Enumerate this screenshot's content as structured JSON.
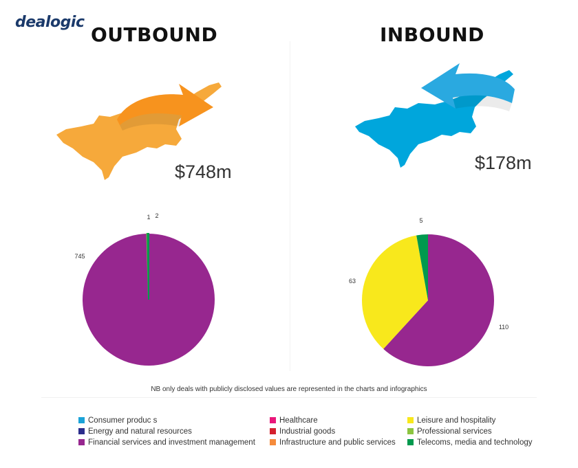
{
  "logo": "dealogic",
  "outbound": {
    "heading": "OUTBOUND",
    "amount": "$748m",
    "map_color": "#f6a93b",
    "arrow_color": "#f7931e"
  },
  "inbound": {
    "heading": "INBOUND",
    "amount": "$178m",
    "map_color": "#00a6dc",
    "arrow_color": "#2aa9e0"
  },
  "chart_data": [
    {
      "type": "pie",
      "slices": [
        {
          "category": "Financial services and investment management",
          "value": 745,
          "label": "745",
          "color": "#97278f"
        },
        {
          "category": "Professional services",
          "value": 1,
          "label": "1",
          "color": "#8cc540"
        },
        {
          "category": "Telecoms, media and technology",
          "value": 2,
          "label": "2",
          "color": "#00994e"
        }
      ]
    },
    {
      "type": "pie",
      "slices": [
        {
          "category": "Financial services and investment management",
          "value": 110,
          "label": "110",
          "color": "#97278f"
        },
        {
          "category": "Leisure and hospitality",
          "value": 63,
          "label": "63",
          "color": "#f8e81c"
        },
        {
          "category": "Telecoms, media and technology",
          "value": 5,
          "label": "5",
          "color": "#00994e"
        }
      ]
    }
  ],
  "note": "NB only deals with publicly disclosed values are represented in the charts and infographics",
  "legend": [
    {
      "label": "Consumer produc s",
      "color": "#1ba3d8"
    },
    {
      "label": "Healthcare",
      "color": "#e9177a"
    },
    {
      "label": "Leisure and hospitality",
      "color": "#f8e81c"
    },
    {
      "label": "Energy and natural resources",
      "color": "#2b2d8c"
    },
    {
      "label": "Industrial goods",
      "color": "#d4202e"
    },
    {
      "label": "Professional services",
      "color": "#8cc540"
    },
    {
      "label": "Financial services and investment management",
      "color": "#97278f"
    },
    {
      "label": "Infrastructure and public services",
      "color": "#f58b3c"
    },
    {
      "label": "Telecoms, media and technology",
      "color": "#00994e"
    }
  ]
}
